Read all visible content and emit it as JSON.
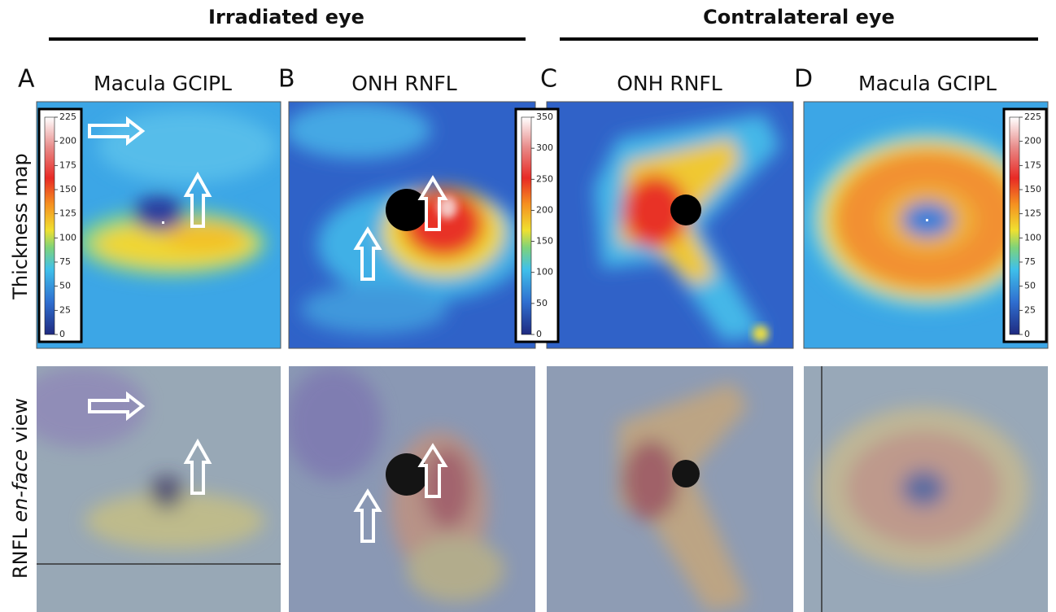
{
  "headers": [
    "Irradiated eye",
    "Contralateral eye"
  ],
  "row_labels": {
    "thickness": "Thickness map",
    "enface": [
      "RNFL",
      "en-face",
      "view"
    ]
  },
  "panels": [
    {
      "letter": "A",
      "title": "Macula GCIPL",
      "colorbar": {
        "ticks": [
          0,
          25,
          50,
          75,
          100,
          125,
          150,
          175,
          200,
          225
        ]
      }
    },
    {
      "letter": "B",
      "title": "ONH RNFL",
      "colorbar": {
        "ticks": [
          0,
          50,
          100,
          150,
          200,
          250,
          300,
          350
        ]
      }
    },
    {
      "letter": "C",
      "title": "ONH RNFL"
    },
    {
      "letter": "D",
      "title": "Macula GCIPL",
      "colorbar": {
        "ticks": [
          0,
          25,
          50,
          75,
          100,
          125,
          150,
          175,
          200,
          225
        ]
      }
    }
  ]
}
